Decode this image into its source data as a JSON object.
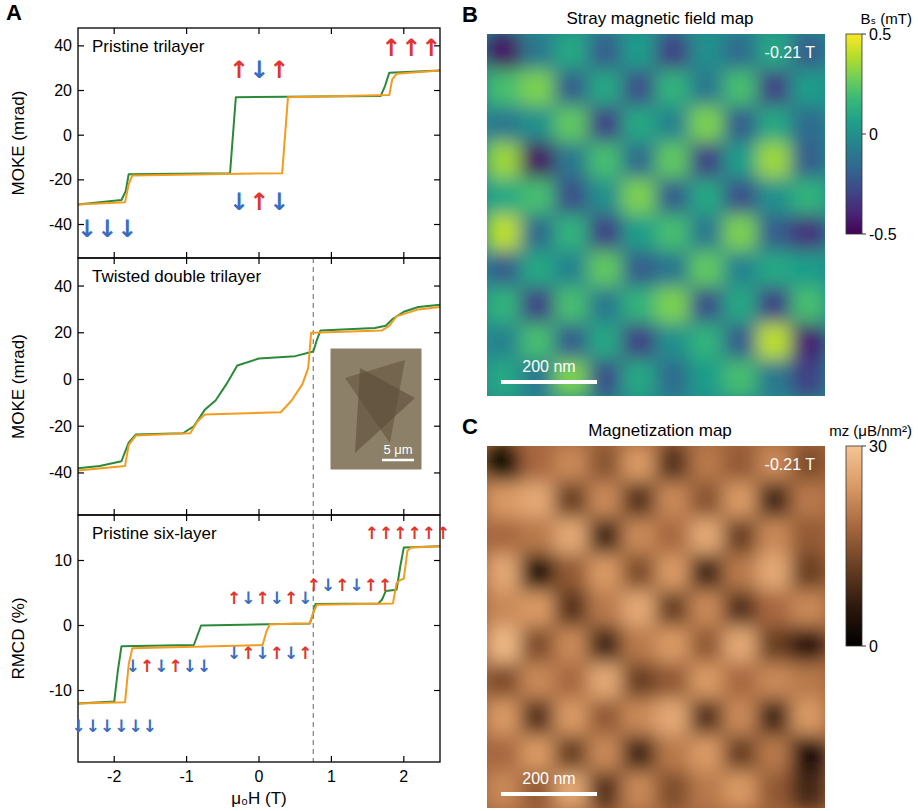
{
  "chart_data": [
    {
      "type": "line",
      "panel": "A",
      "title": "Pristine trilayer",
      "ylabel": "MOKE (mrad)",
      "xlim": [
        -2.5,
        2.5
      ],
      "xticks": [
        -2,
        -1,
        0,
        1,
        2
      ],
      "ylim": [
        -55,
        48
      ],
      "yticks": [
        -40,
        -20,
        0,
        20,
        40
      ],
      "tick_labels": "y",
      "series": [
        {
          "color": "#2a8a3a",
          "x": [
            2.5,
            1.8,
            1.74,
            1.68,
            -0.32,
            -0.36,
            -0.4,
            -1.8,
            -1.84,
            -1.9,
            -2.5
          ],
          "values": [
            29,
            28,
            22,
            17.5,
            17,
            0,
            -17,
            -17.5,
            -25,
            -29,
            -31
          ]
        },
        {
          "color": "#f39c1e",
          "x": [
            -2.5,
            -1.85,
            -1.8,
            -1.75,
            0.32,
            0.36,
            0.4,
            1.8,
            1.84,
            1.9,
            2.5
          ],
          "values": [
            -31,
            -30,
            -22,
            -18,
            -17,
            0,
            17,
            18,
            25,
            27.5,
            29
          ]
        }
      ],
      "annotations": [
        {
          "x": 0,
          "y": 29,
          "text": "↑↓↑"
        },
        {
          "x": 0,
          "y": -30,
          "text": "↓↑↓"
        },
        {
          "x": -2.1,
          "y": -42,
          "text": "↓↓↓"
        },
        {
          "x": 2.1,
          "y": 39,
          "text": "↑↑↑"
        }
      ]
    },
    {
      "type": "line",
      "title": "Twisted double trilayer",
      "ylabel": "MOKE (mrad)",
      "xlim": [
        -2.5,
        2.5
      ],
      "xticks": [
        -2,
        -1,
        0,
        1,
        2
      ],
      "ylim": [
        -58,
        52
      ],
      "yticks": [
        -40,
        -20,
        0,
        20,
        40
      ],
      "tick_labels": "y",
      "vline": 0.75,
      "inset_label": "5 μm",
      "series": [
        {
          "color": "#2a8a3a",
          "x": [
            2.5,
            2.2,
            2.0,
            1.85,
            1.75,
            1.6,
            0.85,
            0.8,
            0.75,
            0.5,
            0,
            -0.3,
            -0.45,
            -0.6,
            -0.75,
            -0.9,
            -1.05,
            -1.7,
            -1.8,
            -1.9,
            -2.2,
            -2.5
          ],
          "values": [
            32,
            31,
            29,
            26,
            23,
            22,
            21,
            17,
            12,
            10,
            9,
            6,
            -2,
            -9,
            -13,
            -20,
            -23,
            -23.5,
            -27,
            -35,
            -37,
            -38
          ]
        },
        {
          "color": "#f39c1e",
          "x": [
            -2.5,
            -1.85,
            -1.8,
            -1.7,
            -0.95,
            -0.85,
            -0.75,
            0.3,
            0.45,
            0.6,
            0.68,
            0.72,
            1.7,
            1.8,
            1.9,
            2.2,
            2.5
          ],
          "values": [
            -39,
            -37,
            -28,
            -24,
            -23,
            -18,
            -15,
            -14,
            -9,
            -2,
            5,
            20,
            21,
            23,
            27,
            30,
            31
          ]
        }
      ]
    },
    {
      "type": "line",
      "title": "Pristine six-layer",
      "ylabel": "RMCD (%)",
      "xlabel": "μ₀H (T)",
      "xlim": [
        -2.5,
        2.5
      ],
      "xticks": [
        -2,
        -1,
        0,
        1,
        2
      ],
      "ylim": [
        -21,
        17
      ],
      "yticks": [
        -10,
        0,
        10
      ],
      "vline": 0.75,
      "series": [
        {
          "color": "#2a8a3a",
          "x": [
            2.5,
            2.0,
            1.95,
            1.9,
            1.75,
            1.7,
            1.65,
            0.78,
            0.74,
            0.7,
            -0.8,
            -0.85,
            -0.9,
            -1.9,
            -1.95,
            -2.0,
            -2.5
          ],
          "values": [
            12.2,
            12,
            9,
            5.5,
            5.3,
            4,
            3.4,
            3.3,
            1.5,
            0.3,
            0,
            -1.5,
            -3,
            -3.2,
            -7,
            -11.7,
            -12
          ]
        },
        {
          "color": "#f39c1e",
          "x": [
            -2.5,
            -1.85,
            -1.8,
            -1.75,
            0.05,
            0.1,
            0.15,
            0.7,
            0.75,
            0.8,
            1.85,
            1.9,
            1.95,
            2.0,
            2.05,
            2.1,
            2.5
          ],
          "values": [
            -12,
            -11.8,
            -6,
            -3.5,
            -3,
            -1,
            0.2,
            0.3,
            2,
            3.2,
            3.4,
            6.5,
            7,
            7.2,
            11.5,
            12,
            12.2
          ]
        }
      ],
      "annotations": [
        {
          "x": 2.05,
          "y": 14.2,
          "text": "↑↑↑↑↑↑"
        },
        {
          "x": 1.25,
          "y": 6.3,
          "text": "↑↓↑↓↑↑"
        },
        {
          "x": 0.15,
          "y": 4.2,
          "text": "↑↓↑↓↑↓"
        },
        {
          "x": 0.15,
          "y": -4.2,
          "text": "↓↑↓↑↓↑"
        },
        {
          "x": -1.25,
          "y": -6.3,
          "text": "↓↑↓↑↓↓"
        },
        {
          "x": -2.0,
          "y": -15.5,
          "text": "↓↓↓↓↓↓"
        }
      ]
    },
    {
      "type": "heatmap",
      "panel": "B",
      "title": "Stray magnetic field map",
      "colorbar_label": "Bₛ (mT)",
      "field_label": "-0.21 T",
      "scale_label": "200 nm",
      "zlim": [
        -0.5,
        0.5
      ],
      "zticks": [
        -0.5,
        0,
        0.5
      ],
      "z": [
        [
          -0.45,
          -0.1,
          0.1,
          -0.2,
          0.05,
          -0.3,
          0.0,
          -0.15,
          0.1,
          -0.2
        ],
        [
          0.2,
          0.3,
          -0.2,
          0.1,
          -0.25,
          0.15,
          -0.1,
          0.2,
          -0.3,
          0.05
        ],
        [
          -0.1,
          0.0,
          0.25,
          -0.3,
          0.1,
          -0.05,
          0.3,
          -0.2,
          0.1,
          -0.15
        ],
        [
          0.35,
          -0.45,
          -0.1,
          0.2,
          -0.15,
          0.25,
          -0.3,
          0.05,
          0.35,
          -0.2
        ],
        [
          0.1,
          0.2,
          -0.25,
          0.0,
          0.3,
          -0.2,
          0.1,
          -0.25,
          0.0,
          0.15
        ],
        [
          0.4,
          -0.15,
          0.15,
          -0.3,
          0.05,
          0.2,
          -0.1,
          0.3,
          -0.2,
          -0.35
        ],
        [
          -0.2,
          0.1,
          -0.05,
          0.25,
          -0.2,
          -0.1,
          0.25,
          -0.05,
          0.1,
          0.05
        ],
        [
          0.15,
          -0.3,
          0.2,
          -0.1,
          0.15,
          0.3,
          -0.25,
          0.1,
          -0.3,
          0.2
        ],
        [
          -0.05,
          0.2,
          -0.2,
          0.1,
          -0.3,
          0.0,
          0.15,
          -0.2,
          0.4,
          -0.4
        ],
        [
          0.1,
          -0.1,
          0.3,
          -0.25,
          0.1,
          -0.15,
          0.05,
          0.2,
          -0.1,
          -0.3
        ]
      ]
    },
    {
      "type": "heatmap",
      "panel": "C",
      "title": "Magnetization map",
      "colorbar_label": "mz (μB/nm²)",
      "field_label": "-0.21 T",
      "scale_label": "200 nm",
      "zlim": [
        0,
        30
      ],
      "zticks": [
        0,
        30
      ],
      "z": [
        [
          2,
          18,
          22,
          15,
          24,
          10,
          20,
          16,
          22,
          14
        ],
        [
          24,
          26,
          12,
          22,
          10,
          22,
          15,
          24,
          8,
          20
        ],
        [
          18,
          20,
          26,
          8,
          22,
          18,
          26,
          12,
          22,
          16
        ],
        [
          26,
          3,
          16,
          24,
          14,
          24,
          8,
          20,
          26,
          12
        ],
        [
          22,
          24,
          10,
          20,
          26,
          12,
          22,
          10,
          18,
          22
        ],
        [
          28,
          14,
          22,
          8,
          20,
          24,
          16,
          26,
          12,
          6
        ],
        [
          14,
          22,
          18,
          26,
          12,
          16,
          24,
          18,
          22,
          20
        ],
        [
          24,
          10,
          24,
          16,
          22,
          26,
          10,
          22,
          8,
          24
        ],
        [
          18,
          24,
          12,
          22,
          8,
          20,
          24,
          12,
          20,
          4
        ],
        [
          22,
          16,
          26,
          10,
          22,
          14,
          20,
          24,
          16,
          8
        ]
      ]
    }
  ]
}
